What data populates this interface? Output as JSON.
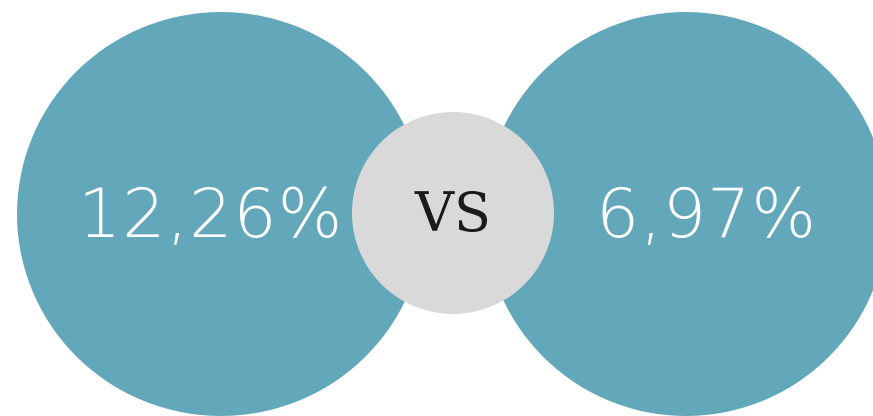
{
  "comparison": {
    "left_value": "12,26%",
    "right_value": "6,97%",
    "separator": "VS"
  },
  "colors": {
    "circle_fill": "#62a8ba",
    "vs_circle_fill": "#d9d9d9",
    "value_text": "#ffffff",
    "vs_text": "#1a1a1a"
  }
}
